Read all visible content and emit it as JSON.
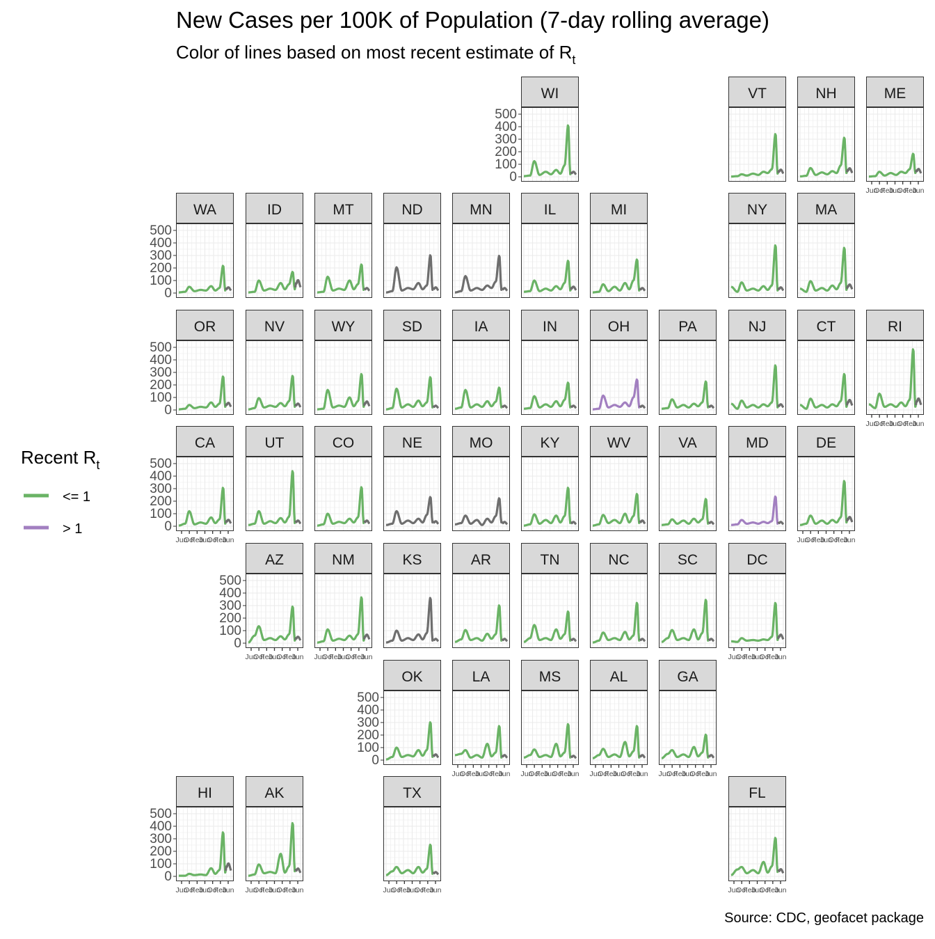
{
  "title": "New Cases per 100K of Population (7-day rolling average)",
  "subtitle": {
    "text": "Color of lines based on most recent estimate of R",
    "subscript": "t"
  },
  "source": "Source: CDC, geofacet package",
  "legend": {
    "title": "Recent R",
    "title_subscript": "t",
    "entries": [
      {
        "label": "<= 1",
        "color": "#6ab365"
      },
      {
        "label": "> 1",
        "color": "#a27fc0"
      }
    ]
  },
  "colors": {
    "le1": "#6ab365",
    "gt1": "#a27fc0",
    "no_estimate": "#6e6e6e",
    "strip": "#d9d9d9",
    "panel_grid": "#ebebeb"
  },
  "chart_data": {
    "type": "line",
    "layout": "geofacet small multiples (US states)",
    "y_ticks": [
      0,
      100,
      200,
      300,
      400,
      500
    ],
    "ylim": [
      0,
      500
    ],
    "x_ticks": [
      "Jun",
      "Oct",
      "Feb",
      "Jun",
      "Oct",
      "Feb",
      "Jun"
    ],
    "series_shape_knots": [
      0,
      0.12,
      0.2,
      0.3,
      0.42,
      0.52,
      0.62,
      0.7,
      0.78,
      0.85,
      0.89,
      0.92
    ],
    "notes": "Each state: values at the knot positions [early, wave1-peak, trough, wave2-peak, trough, wave3-peak, trough, wave4-peak, pre-spike, Omicron peak, post, current]; final segment gray",
    "states": [
      {
        "id": "WI",
        "color": "le1",
        "values": [
          5,
          10,
          125,
          15,
          40,
          20,
          55,
          25,
          90,
          415,
          20,
          35
        ]
      },
      {
        "id": "VT",
        "color": "le1",
        "values": [
          2,
          5,
          20,
          10,
          25,
          15,
          40,
          30,
          60,
          345,
          25,
          50
        ]
      },
      {
        "id": "NH",
        "color": "le1",
        "values": [
          3,
          8,
          70,
          15,
          35,
          20,
          45,
          30,
          90,
          315,
          30,
          60
        ]
      },
      {
        "id": "ME",
        "color": "le1",
        "values": [
          2,
          5,
          40,
          10,
          30,
          15,
          40,
          30,
          60,
          185,
          30,
          55
        ]
      },
      {
        "id": "WA",
        "color": "le1",
        "values": [
          5,
          10,
          50,
          15,
          25,
          20,
          55,
          20,
          40,
          220,
          20,
          40
        ]
      },
      {
        "id": "ID",
        "color": "le1",
        "values": [
          5,
          10,
          100,
          20,
          35,
          25,
          80,
          30,
          70,
          170,
          30,
          90
        ]
      },
      {
        "id": "MT",
        "color": "le1",
        "values": [
          5,
          10,
          130,
          20,
          35,
          25,
          100,
          30,
          70,
          230,
          25,
          35
        ]
      },
      {
        "id": "ND",
        "color": "no_estimate",
        "values": [
          5,
          15,
          205,
          20,
          40,
          30,
          80,
          30,
          60,
          305,
          25,
          40
        ]
      },
      {
        "id": "MN",
        "color": "no_estimate",
        "values": [
          5,
          15,
          135,
          20,
          40,
          25,
          60,
          40,
          90,
          300,
          25,
          35
        ]
      },
      {
        "id": "IL",
        "color": "le1",
        "values": [
          10,
          15,
          100,
          15,
          35,
          20,
          55,
          30,
          80,
          260,
          20,
          45
        ]
      },
      {
        "id": "MI",
        "color": "le1",
        "values": [
          5,
          10,
          70,
          15,
          50,
          20,
          80,
          30,
          100,
          270,
          20,
          35
        ]
      },
      {
        "id": "NY",
        "color": "le1",
        "values": [
          50,
          10,
          85,
          20,
          35,
          20,
          55,
          25,
          60,
          385,
          20,
          40
        ]
      },
      {
        "id": "MA",
        "color": "le1",
        "values": [
          35,
          10,
          95,
          20,
          40,
          20,
          60,
          30,
          80,
          365,
          25,
          60
        ]
      },
      {
        "id": "OR",
        "color": "le1",
        "values": [
          5,
          10,
          40,
          15,
          25,
          20,
          60,
          25,
          50,
          270,
          25,
          50
        ]
      },
      {
        "id": "NV",
        "color": "le1",
        "values": [
          5,
          15,
          95,
          20,
          35,
          25,
          55,
          30,
          70,
          275,
          25,
          45
        ]
      },
      {
        "id": "WY",
        "color": "le1",
        "values": [
          5,
          10,
          160,
          20,
          35,
          25,
          100,
          30,
          70,
          290,
          25,
          60
        ]
      },
      {
        "id": "SD",
        "color": "le1",
        "values": [
          5,
          15,
          170,
          20,
          45,
          25,
          75,
          30,
          60,
          265,
          20,
          30
        ]
      },
      {
        "id": "IA",
        "color": "le1",
        "values": [
          10,
          20,
          160,
          20,
          45,
          25,
          70,
          30,
          65,
          180,
          20,
          30
        ]
      },
      {
        "id": "IN",
        "color": "le1",
        "values": [
          10,
          15,
          110,
          20,
          45,
          25,
          70,
          30,
          80,
          220,
          20,
          30
        ]
      },
      {
        "id": "OH",
        "color": "gt1",
        "values": [
          5,
          10,
          115,
          20,
          40,
          25,
          60,
          30,
          100,
          245,
          20,
          30
        ]
      },
      {
        "id": "PA",
        "color": "le1",
        "values": [
          10,
          15,
          85,
          20,
          40,
          20,
          50,
          30,
          60,
          230,
          20,
          30
        ]
      },
      {
        "id": "NJ",
        "color": "le1",
        "values": [
          50,
          10,
          75,
          20,
          40,
          20,
          45,
          30,
          60,
          360,
          20,
          40
        ]
      },
      {
        "id": "CT",
        "color": "le1",
        "values": [
          40,
          10,
          90,
          20,
          40,
          20,
          45,
          30,
          70,
          290,
          25,
          70
        ]
      },
      {
        "id": "RI",
        "color": "le1",
        "values": [
          45,
          15,
          130,
          25,
          45,
          25,
          60,
          30,
          80,
          490,
          25,
          80
        ]
      },
      {
        "id": "CA",
        "color": "le1",
        "values": [
          5,
          20,
          120,
          15,
          30,
          20,
          70,
          25,
          55,
          310,
          20,
          45
        ]
      },
      {
        "id": "UT",
        "color": "le1",
        "values": [
          10,
          20,
          120,
          20,
          40,
          25,
          65,
          30,
          75,
          445,
          25,
          40
        ]
      },
      {
        "id": "CO",
        "color": "le1",
        "values": [
          5,
          15,
          100,
          20,
          35,
          25,
          60,
          30,
          70,
          315,
          25,
          40
        ]
      },
      {
        "id": "NE",
        "color": "no_estimate",
        "values": [
          10,
          20,
          120,
          20,
          45,
          25,
          60,
          30,
          90,
          235,
          30,
          35
        ]
      },
      {
        "id": "MO",
        "color": "no_estimate",
        "values": [
          15,
          25,
          85,
          20,
          50,
          10,
          60,
          30,
          80,
          225,
          30,
          30
        ]
      },
      {
        "id": "KY",
        "color": "le1",
        "values": [
          5,
          15,
          95,
          20,
          50,
          25,
          85,
          30,
          80,
          310,
          25,
          30
        ]
      },
      {
        "id": "WV",
        "color": "le1",
        "values": [
          5,
          15,
          90,
          25,
          50,
          25,
          100,
          30,
          80,
          260,
          25,
          40
        ]
      },
      {
        "id": "VA",
        "color": "le1",
        "values": [
          10,
          15,
          55,
          20,
          45,
          20,
          60,
          30,
          55,
          220,
          20,
          30
        ]
      },
      {
        "id": "MD",
        "color": "gt1",
        "values": [
          10,
          15,
          50,
          20,
          30,
          20,
          35,
          25,
          40,
          240,
          20,
          30
        ]
      },
      {
        "id": "DE",
        "color": "le1",
        "values": [
          10,
          20,
          85,
          20,
          45,
          20,
          50,
          30,
          70,
          365,
          30,
          65
        ]
      },
      {
        "id": "AZ",
        "color": "le1",
        "values": [
          5,
          60,
          135,
          25,
          40,
          25,
          55,
          30,
          70,
          295,
          20,
          45
        ]
      },
      {
        "id": "NM",
        "color": "le1",
        "values": [
          5,
          15,
          110,
          20,
          35,
          25,
          60,
          30,
          70,
          370,
          20,
          60
        ]
      },
      {
        "id": "KS",
        "color": "no_estimate",
        "values": [
          5,
          20,
          100,
          20,
          40,
          25,
          70,
          30,
          80,
          365,
          20,
          30
        ]
      },
      {
        "id": "AR",
        "color": "le1",
        "values": [
          10,
          30,
          105,
          25,
          40,
          20,
          75,
          35,
          70,
          305,
          20,
          30
        ]
      },
      {
        "id": "TN",
        "color": "le1",
        "values": [
          10,
          40,
          145,
          25,
          40,
          25,
          110,
          35,
          70,
          255,
          20,
          30
        ]
      },
      {
        "id": "NC",
        "color": "le1",
        "values": [
          5,
          20,
          85,
          25,
          40,
          25,
          90,
          30,
          60,
          325,
          20,
          30
        ]
      },
      {
        "id": "SC",
        "color": "le1",
        "values": [
          10,
          40,
          105,
          25,
          40,
          25,
          110,
          30,
          80,
          350,
          20,
          30
        ]
      },
      {
        "id": "DC",
        "color": "le1",
        "values": [
          15,
          10,
          40,
          20,
          25,
          20,
          30,
          25,
          50,
          325,
          25,
          60
        ]
      },
      {
        "id": "OK",
        "color": "le1",
        "values": [
          5,
          25,
          100,
          25,
          40,
          30,
          80,
          35,
          80,
          305,
          25,
          40
        ]
      },
      {
        "id": "LA",
        "color": "le1",
        "values": [
          40,
          50,
          80,
          20,
          40,
          20,
          130,
          30,
          60,
          275,
          20,
          35
        ]
      },
      {
        "id": "MS",
        "color": "le1",
        "values": [
          20,
          40,
          85,
          25,
          40,
          25,
          130,
          30,
          60,
          290,
          20,
          30
        ]
      },
      {
        "id": "AL",
        "color": "le1",
        "values": [
          15,
          40,
          90,
          25,
          45,
          25,
          145,
          30,
          70,
          275,
          20,
          35
        ]
      },
      {
        "id": "GA",
        "color": "le1",
        "values": [
          15,
          50,
          80,
          25,
          45,
          25,
          105,
          30,
          60,
          205,
          20,
          35
        ]
      },
      {
        "id": "HI",
        "color": "le1",
        "values": [
          5,
          5,
          20,
          10,
          15,
          10,
          65,
          20,
          50,
          355,
          30,
          90
        ]
      },
      {
        "id": "AK",
        "color": "le1",
        "values": [
          5,
          15,
          95,
          25,
          35,
          25,
          180,
          30,
          80,
          430,
          40,
          55
        ]
      },
      {
        "id": "TX",
        "color": "le1",
        "values": [
          10,
          40,
          75,
          25,
          50,
          25,
          75,
          30,
          60,
          255,
          20,
          30
        ]
      },
      {
        "id": "FL",
        "color": "le1",
        "values": [
          10,
          55,
          75,
          25,
          50,
          25,
          115,
          30,
          80,
          310,
          35,
          50
        ]
      }
    ]
  }
}
